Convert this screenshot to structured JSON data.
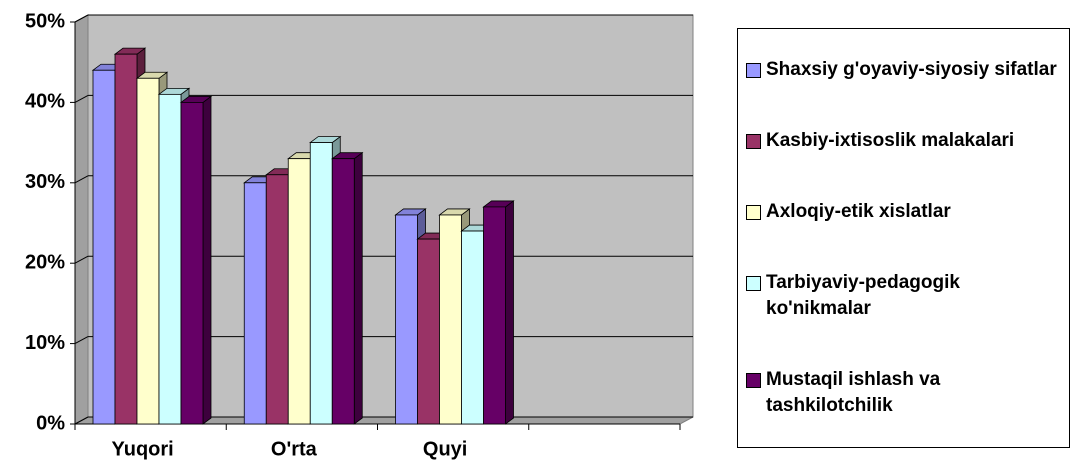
{
  "chart_data": {
    "type": "bar3d",
    "categories": [
      "Yuqori",
      "O'rta",
      "Quyi",
      null
    ],
    "series": [
      {
        "name": "Shaxsiy g'oyaviy-siyosiy sifatlar",
        "color": "#9999ff",
        "values": [
          44,
          30,
          26,
          null
        ]
      },
      {
        "name": "Kasbiy-ixtisoslik malakalari",
        "color": "#993366",
        "values": [
          46,
          31,
          23,
          null
        ]
      },
      {
        "name": "Axloqiy-etik xislatlar",
        "color": "#ffffcc",
        "values": [
          43,
          33,
          26,
          null
        ]
      },
      {
        "name": "Tarbiyaviy-pedagogik ko'nikmalar",
        "color": "#ccffff",
        "values": [
          41,
          35,
          24,
          null
        ]
      },
      {
        "name": "Mustaqil ishlash va tashkilotchilik",
        "color": "#660066",
        "values": [
          40,
          33,
          27,
          null
        ]
      }
    ],
    "ylim": [
      0,
      50
    ],
    "yticks": [
      {
        "value": 0,
        "label": "0%"
      },
      {
        "value": 10,
        "label": "10%"
      },
      {
        "value": 20,
        "label": "20%"
      },
      {
        "value": 30,
        "label": "30%"
      },
      {
        "value": 40,
        "label": "40%"
      },
      {
        "value": 50,
        "label": "50%"
      }
    ],
    "grid": true,
    "legend": "right"
  }
}
